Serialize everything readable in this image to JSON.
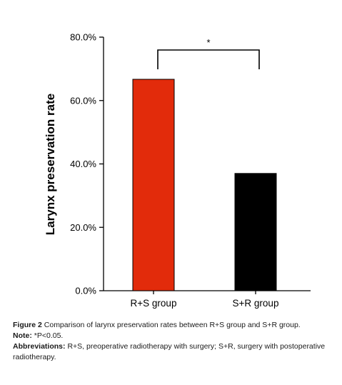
{
  "chart_data": {
    "type": "bar",
    "title": "",
    "xlabel": "",
    "ylabel": "Larynx preservation rate",
    "categories": [
      "R+S group",
      "S+R group"
    ],
    "values": [
      0.667,
      0.37
    ],
    "ylim": [
      0,
      0.8
    ],
    "yticks": [
      0.0,
      0.2,
      0.4,
      0.6,
      0.8
    ],
    "ytick_labels": [
      "0.0%",
      "20.0%",
      "40.0%",
      "60.0%",
      "80.0%"
    ],
    "bar_colors": [
      "#e22b0b",
      "#000000"
    ],
    "grid": false,
    "significance": {
      "between": [
        "R+S group",
        "S+R group"
      ],
      "label": "*"
    }
  },
  "caption": {
    "figure_label": "Figure 2",
    "figure_text": "Comparison of larynx preservation rates between R+S group and S+R group.",
    "note_label": "Note:",
    "note_text": "*P<0.05.",
    "abbrev_label": "Abbreviations:",
    "abbrev_text": "R+S, preoperative radiotherapy with surgery; S+R, surgery with postoperative radiotherapy."
  }
}
